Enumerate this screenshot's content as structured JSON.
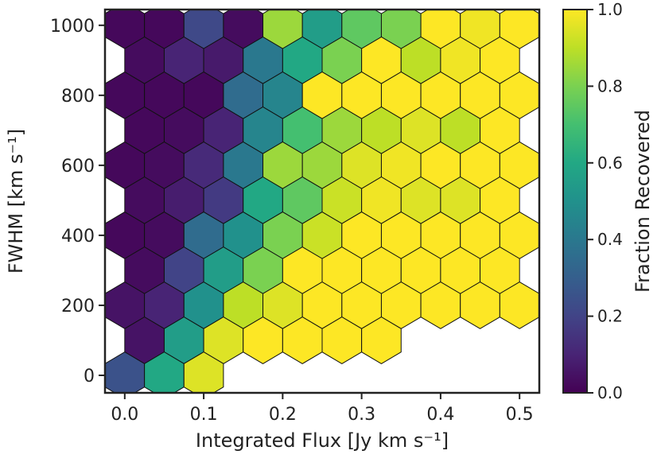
{
  "chart_data": {
    "type": "hexbin",
    "x_label": "Integrated Flux [Jy km s⁻¹]",
    "y_label": "FWHM [km s⁻¹]",
    "colorbar_label": "Fraction Recovered",
    "colormap": "viridis",
    "clim": [
      0,
      1
    ],
    "cticks": [
      {
        "value": 0,
        "label": "0.0"
      },
      0.2,
      0.4,
      0.6,
      0.8,
      {
        "value": 1,
        "label": "1.0"
      }
    ],
    "xlim": [
      -0.025,
      0.525
    ],
    "ylim": [
      -50,
      1045
    ],
    "xticks": [
      {
        "value": 0,
        "label": "0.0"
      },
      0.1,
      0.2,
      0.3,
      0.4,
      0.5
    ],
    "yticks": [
      0,
      200,
      400,
      600,
      800,
      1000
    ],
    "x": [
      0.0,
      0.05,
      0.1,
      0.15,
      0.2,
      0.25,
      0.3,
      0.35,
      0.4,
      0.45,
      0.5,
      0.025,
      0.075,
      0.125,
      0.175,
      0.225,
      0.275,
      0.325,
      0.375,
      0.425,
      0.475,
      0.0,
      0.05,
      0.1,
      0.15,
      0.2,
      0.25,
      0.3,
      0.35,
      0.4,
      0.45,
      0.5,
      0.025,
      0.075,
      0.125,
      0.175,
      0.225,
      0.275,
      0.325,
      0.375,
      0.425,
      0.475,
      0.0,
      0.05,
      0.1,
      0.15,
      0.2,
      0.25,
      0.3,
      0.35,
      0.4,
      0.45,
      0.5,
      0.025,
      0.075,
      0.125,
      0.175,
      0.225,
      0.275,
      0.325,
      0.375,
      0.425,
      0.475,
      0.0,
      0.05,
      0.1,
      0.15,
      0.2,
      0.25,
      0.3,
      0.35,
      0.4,
      0.45,
      0.5,
      0.025,
      0.075,
      0.125,
      0.175,
      0.225,
      0.275,
      0.325,
      0.375,
      0.425,
      0.475,
      0.0,
      0.05,
      0.1,
      0.15,
      0.2,
      0.25,
      0.3,
      0.35,
      0.4,
      0.45,
      0.5,
      0.025,
      0.075,
      0.125,
      0.175,
      0.225,
      0.275,
      0.325,
      0.0,
      0.05,
      0.1
    ],
    "y": [
      1000,
      1000,
      1000,
      1000,
      1000,
      1000,
      1000,
      1000,
      1000,
      1000,
      1000,
      900,
      900,
      900,
      900,
      900,
      900,
      900,
      900,
      900,
      900,
      800,
      800,
      800,
      800,
      800,
      800,
      800,
      800,
      800,
      800,
      800,
      700,
      700,
      700,
      700,
      700,
      700,
      700,
      700,
      700,
      700,
      600,
      600,
      600,
      600,
      600,
      600,
      600,
      600,
      600,
      600,
      600,
      500,
      500,
      500,
      500,
      500,
      500,
      500,
      500,
      500,
      500,
      400,
      400,
      400,
      400,
      400,
      400,
      400,
      400,
      400,
      400,
      400,
      300,
      300,
      300,
      300,
      300,
      300,
      300,
      300,
      300,
      300,
      200,
      200,
      200,
      200,
      200,
      200,
      200,
      200,
      200,
      200,
      200,
      100,
      100,
      100,
      100,
      100,
      100,
      100,
      0,
      0,
      0
    ],
    "values": [
      0.02,
      0.02,
      0.22,
      0.03,
      0.85,
      0.55,
      0.75,
      0.8,
      1.0,
      0.98,
      1.0,
      0.03,
      0.1,
      0.07,
      0.4,
      0.6,
      0.8,
      1.0,
      0.9,
      0.98,
      1.0,
      0.02,
      0.02,
      0.02,
      0.35,
      0.45,
      1.0,
      1.0,
      1.0,
      1.0,
      1.0,
      1.0,
      0.02,
      0.03,
      0.1,
      0.45,
      0.7,
      0.85,
      0.9,
      0.95,
      0.9,
      1.0,
      0.02,
      0.03,
      0.12,
      0.4,
      0.85,
      0.85,
      0.95,
      0.98,
      1.0,
      1.0,
      1.0,
      0.03,
      0.08,
      0.17,
      0.6,
      0.75,
      0.92,
      0.98,
      0.95,
      0.95,
      1.0,
      0.02,
      0.03,
      0.35,
      0.5,
      0.8,
      0.92,
      1.0,
      1.0,
      1.0,
      1.0,
      1.0,
      0.03,
      0.2,
      0.55,
      0.8,
      1.0,
      1.0,
      1.0,
      1.0,
      1.0,
      1.0,
      0.05,
      0.1,
      0.5,
      0.9,
      0.95,
      1.0,
      1.0,
      1.0,
      1.0,
      1.0,
      1.0,
      0.05,
      0.55,
      0.95,
      1.0,
      1.0,
      1.0,
      1.0,
      0.25,
      0.6,
      0.95
    ]
  }
}
